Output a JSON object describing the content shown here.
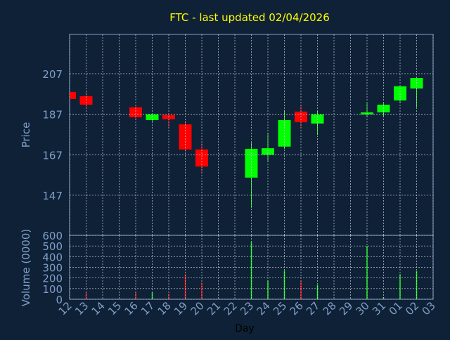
{
  "chart_data": {
    "type": "candlestick",
    "title": "FTC - last updated 02/04/2026",
    "x_label": "Day",
    "y_label": "Price",
    "y2_label": "Volume (0000)",
    "categories": [
      "12",
      "13",
      "14",
      "15",
      "16",
      "17",
      "18",
      "19",
      "20",
      "21",
      "22",
      "23",
      "24",
      "25",
      "26",
      "27",
      "28",
      "29",
      "30",
      "31",
      "01",
      "02",
      "03"
    ],
    "open": [
      198,
      195.9,
      null,
      null,
      190.4,
      184.1,
      186.6,
      182,
      169.6,
      null,
      null,
      155.7,
      167,
      171,
      188.3,
      182.4,
      null,
      null,
      186.9,
      187.9,
      193.8,
      199.7,
      null
    ],
    "high": [
      198.5,
      198,
      null,
      null,
      191,
      187.2,
      187,
      183.8,
      172.7,
      null,
      null,
      173,
      177.9,
      189,
      191.4,
      188.6,
      null,
      null,
      192.4,
      192.4,
      201.1,
      205,
      null
    ],
    "low": [
      194.5,
      189.7,
      null,
      null,
      184.1,
      183.4,
      180.3,
      168.5,
      158.1,
      null,
      null,
      140.8,
      163.7,
      169.9,
      180.3,
      176.8,
      null,
      null,
      185.5,
      185.9,
      192.4,
      190.4,
      null
    ],
    "close": [
      194.5,
      191.7,
      null,
      null,
      185.5,
      186.9,
      184.5,
      169.6,
      161.2,
      null,
      null,
      169.9,
      170.2,
      184.1,
      183.1,
      186.9,
      null,
      null,
      187.9,
      191.7,
      200.8,
      204.9,
      null
    ],
    "volume": [
      10,
      65,
      null,
      null,
      65,
      65,
      50,
      235,
      155,
      null,
      null,
      540,
      175,
      270,
      170,
      135,
      null,
      null,
      500,
      20,
      235,
      265,
      null
    ],
    "up_color": "#00ff00",
    "down_color": "#ff0000",
    "ylim": [
      127.2,
      226.4
    ],
    "yticks": [
      147,
      167,
      187,
      207
    ],
    "y2lim": [
      0,
      600
    ],
    "y2ticks": [
      0,
      100,
      200,
      300,
      400,
      500,
      600
    ],
    "grid": true,
    "title_color": "#ffff00"
  }
}
